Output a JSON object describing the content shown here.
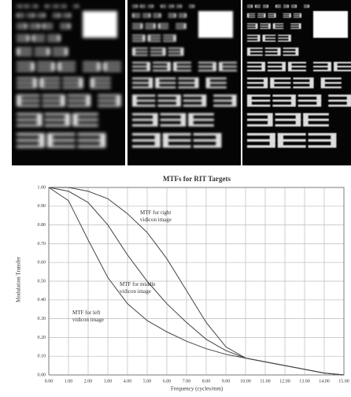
{
  "chart_data": {
    "type": "line",
    "title": "MTFs for RIT Targets",
    "x_label": "Frequency (cycles/mm)",
    "y_label": "Modulation Transfer",
    "x": [
      0,
      1,
      2,
      3,
      4,
      5,
      6,
      7,
      8,
      9,
      10,
      11,
      12,
      13,
      14,
      15
    ],
    "series": [
      {
        "color": "#444444",
        "values": [
          1.0,
          0.93,
          0.72,
          0.52,
          0.38,
          0.29,
          0.23,
          0.18,
          0.14,
          0.11,
          0.09,
          0.07,
          0.05,
          0.03,
          0.01,
          0.0
        ]
      },
      {
        "color": "#444444",
        "values": [
          1.0,
          0.98,
          0.92,
          0.8,
          0.64,
          0.5,
          0.38,
          0.28,
          0.19,
          0.13,
          0.09,
          0.07,
          0.05,
          0.03,
          0.01,
          0.0
        ]
      },
      {
        "color": "#444444",
        "values": [
          1.0,
          1.0,
          0.98,
          0.94,
          0.86,
          0.76,
          0.62,
          0.45,
          0.28,
          0.15,
          0.09,
          0.07,
          0.05,
          0.03,
          0.01,
          0.0
        ]
      }
    ],
    "annotations": [
      "MTF for left vidicon image",
      "MTF for middle vidicon image",
      "MTF for right vidicon image"
    ],
    "xlim": [
      0,
      15
    ],
    "ylim": [
      0,
      1
    ],
    "xticks": [
      {
        "value": 0,
        "label": "0.00"
      },
      {
        "value": 1,
        "label": "1.00"
      },
      {
        "value": 2,
        "label": "2.00"
      },
      {
        "value": 3,
        "label": "3.00"
      },
      {
        "value": 4,
        "label": "4.00"
      },
      {
        "value": 5,
        "label": "5.00"
      },
      {
        "value": 6,
        "label": "6.00"
      },
      {
        "value": 7,
        "label": "7.00"
      },
      {
        "value": 8,
        "label": "8.00"
      },
      {
        "value": 9,
        "label": "9.00"
      },
      {
        "value": 10,
        "label": "10.00"
      },
      {
        "value": 11,
        "label": "11.00"
      },
      {
        "value": 12,
        "label": "12.00"
      },
      {
        "value": 13,
        "label": "13.00"
      },
      {
        "value": 14,
        "label": "14.00"
      },
      {
        "value": 15,
        "label": "15.00"
      }
    ],
    "yticks": [
      {
        "value": 0,
        "label": "0.00"
      },
      {
        "value": 0.1,
        "label": "0.10"
      },
      {
        "value": 0.2,
        "label": "0.20"
      },
      {
        "value": 0.3,
        "label": "0.30"
      },
      {
        "value": 0.4,
        "label": "0.40"
      },
      {
        "value": 0.5,
        "label": "0.50"
      },
      {
        "value": 0.6,
        "label": "0.60"
      },
      {
        "value": 0.7,
        "label": "0.70"
      },
      {
        "value": 0.8,
        "label": "0.80"
      },
      {
        "value": 0.9,
        "label": "0.90"
      },
      {
        "value": 1,
        "label": "1.00"
      }
    ],
    "grid": true
  }
}
